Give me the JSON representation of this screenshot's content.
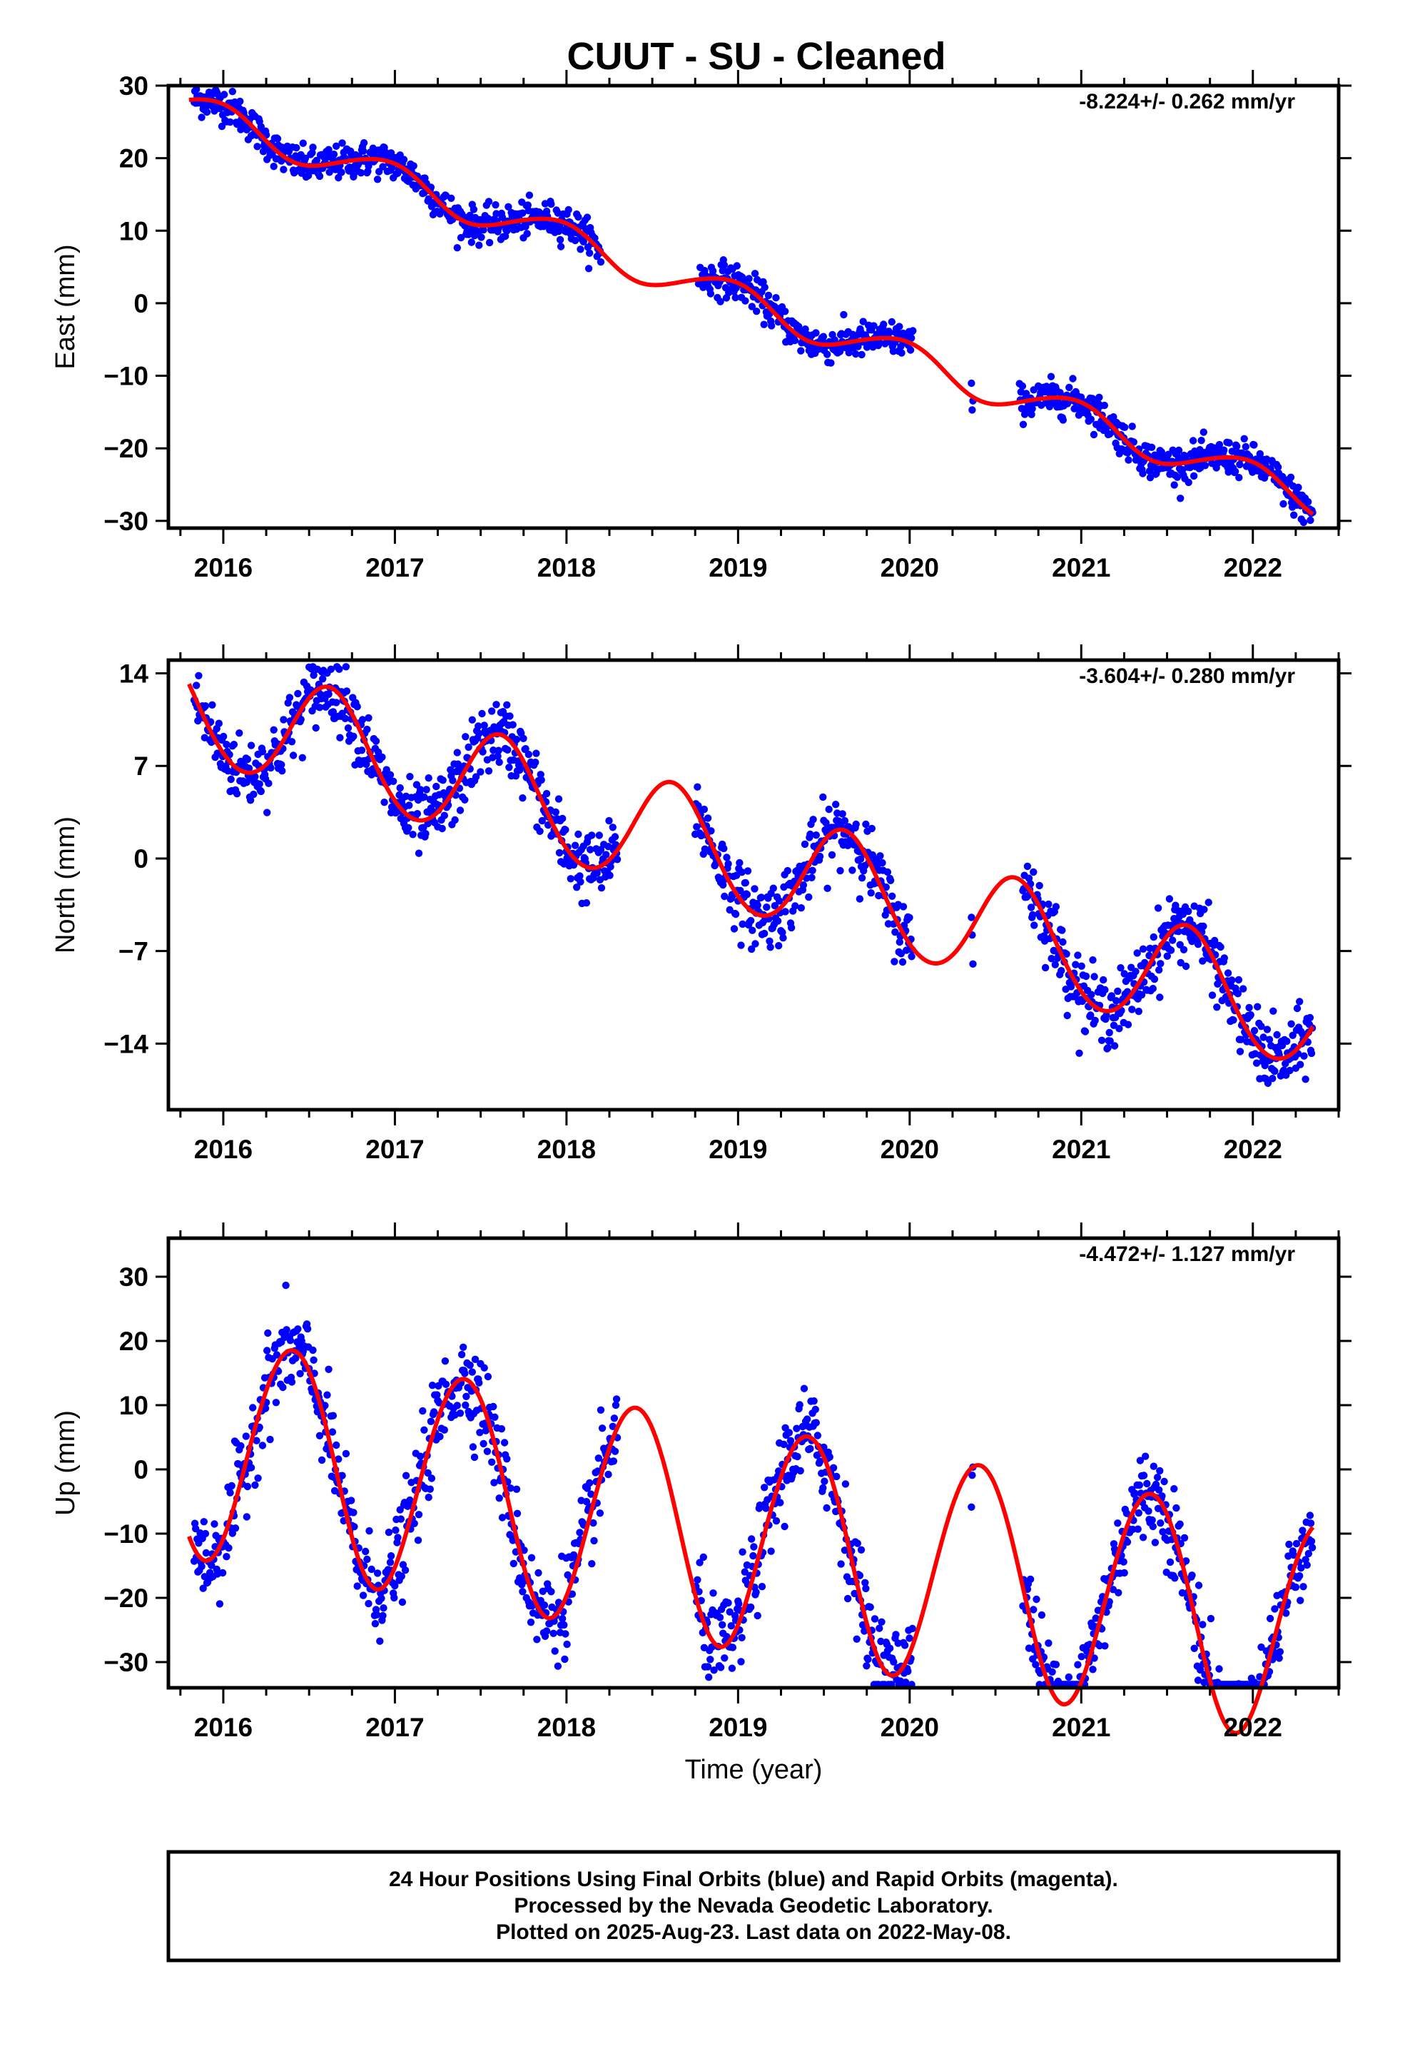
{
  "title": "CUUT  - SU - Cleaned",
  "colors": {
    "final_orbits": "#0000ff",
    "model_fit": "#ff0000",
    "frame": "#000000"
  },
  "chart_data": [
    {
      "type": "scatter",
      "ylabel": "East (mm)",
      "xlabel": "",
      "xlim": [
        2015.68,
        2022.5
      ],
      "ylim": [
        -31,
        30
      ],
      "xticks": [
        "2016",
        "2017",
        "2018",
        "2019",
        "2020",
        "2021",
        "2022"
      ],
      "yticks": [
        "30",
        "20",
        "10",
        "0",
        "−10",
        "−20",
        "−30"
      ],
      "rate_text": "-8.224+/- 0.262 mm/yr",
      "grid": false,
      "series": [
        {
          "name": "",
          "style": "points",
          "color": "#0000ff",
          "segments": [
            [
              2015.83,
              2018.2
            ],
            [
              2018.77,
              2020.02
            ],
            [
              2020.36,
              2020.37
            ],
            [
              2020.64,
              2022.35
            ]
          ],
          "jitter": 1.2
        },
        {
          "name": "",
          "style": "line",
          "color": "#ff0000"
        }
      ],
      "model": {
        "t0": 2015.83,
        "y0": 26.6,
        "rate": -8.224,
        "annual_amp": 2.3,
        "annual_peak": 2015.95,
        "semi_amp": 0.2,
        "semi_peak": 2016.1
      },
      "x_range": [
        2015.8,
        2022.35
      ]
    },
    {
      "type": "scatter",
      "ylabel": "North (mm)",
      "xlabel": "",
      "xlim": [
        2015.68,
        2022.5
      ],
      "ylim": [
        -19,
        15
      ],
      "xticks": [
        "2016",
        "2017",
        "2018",
        "2019",
        "2020",
        "2021",
        "2022"
      ],
      "yticks": [
        "14",
        "7",
        "0",
        "−7",
        "−14"
      ],
      "rate_text": "-3.604+/- 0.280 mm/yr",
      "grid": false,
      "series": [
        {
          "name": "",
          "style": "points",
          "color": "#0000ff",
          "segments": [
            [
              2015.83,
              2018.3
            ],
            [
              2018.75,
              2020.02
            ],
            [
              2020.36,
              2020.37
            ],
            [
              2020.66,
              2022.35
            ]
          ],
          "jitter": 1.3
        },
        {
          "name": "",
          "style": "line",
          "color": "#ff0000"
        }
      ],
      "model": {
        "t0": 2015.83,
        "y0": 11.5,
        "rate": -3.604,
        "annual_amp": 4.1,
        "annual_peak": 2015.62,
        "semi_amp": 0.2,
        "semi_peak": 2016.1
      },
      "x_range": [
        2015.8,
        2022.35
      ]
    },
    {
      "type": "scatter",
      "ylabel": "Up (mm)",
      "xlabel": "Time (year)",
      "xlim": [
        2015.68,
        2022.5
      ],
      "ylim": [
        -34,
        36
      ],
      "xticks": [
        "2016",
        "2017",
        "2018",
        "2019",
        "2020",
        "2021",
        "2022"
      ],
      "yticks": [
        "30",
        "20",
        "10",
        "0",
        "−10",
        "−20",
        "−30"
      ],
      "rate_text": "-4.472+/- 1.127 mm/yr",
      "grid": false,
      "series": [
        {
          "name": "",
          "style": "points",
          "color": "#0000ff",
          "segments": [
            [
              2015.83,
              2018.3
            ],
            [
              2018.75,
              2020.02
            ],
            [
              2020.36,
              2020.37
            ],
            [
              2020.66,
              2022.35
            ]
          ],
          "jitter": 3.6
        },
        {
          "name": "",
          "style": "line",
          "color": "#ff0000"
        }
      ],
      "model": {
        "t0": 2015.83,
        "y0": 4.0,
        "rate": -4.472,
        "annual_amp": 17.5,
        "annual_peak": 2016.4,
        "semi_amp": 0.5,
        "semi_peak": 2016.1
      },
      "x_range": [
        2015.8,
        2022.35
      ]
    }
  ],
  "footer": {
    "line1": "24 Hour Positions Using Final Orbits (blue) and Rapid Orbits (magenta).",
    "line2": "Processed by the Nevada Geodetic Laboratory.",
    "line3": "Plotted on 2025-Aug-23. Last data on 2022-May-08."
  }
}
